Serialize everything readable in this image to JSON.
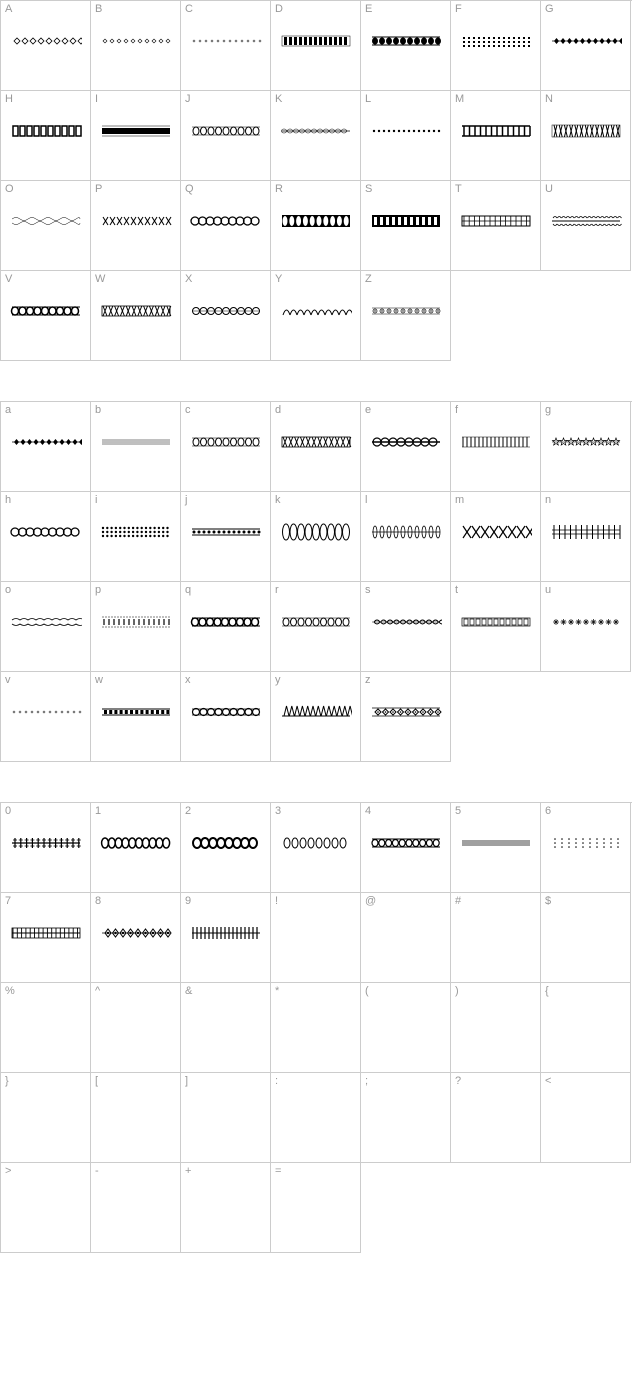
{
  "sections": [
    {
      "rows": [
        [
          "A",
          "B",
          "C",
          "D",
          "E",
          "F",
          "G"
        ],
        [
          "H",
          "I",
          "J",
          "K",
          "L",
          "M",
          "N"
        ],
        [
          "O",
          "P",
          "Q",
          "R",
          "S",
          "T",
          "U"
        ],
        [
          "V",
          "W",
          "X",
          "Y",
          "Z"
        ]
      ],
      "glyphs": {
        "A": "diamond-hollow",
        "B": "diamond-small",
        "C": "dots-small",
        "D": "square-dense",
        "E": "oval-thick",
        "F": "dots-stacked",
        "G": "diamond-chain",
        "H": "hash-thick",
        "I": "bar-thick",
        "J": "oval-outline",
        "K": "twist",
        "L": "dots-line",
        "M": "ladder",
        "N": "cross-dense",
        "O": "wave-thin",
        "P": "xxx",
        "Q": "oval-chain",
        "R": "oval-dense",
        "S": "rect-dense",
        "T": "rect-mesh",
        "U": "wave-tight",
        "V": "chain-heavy",
        "W": "mesh-heavy",
        "X": "circles",
        "Y": "waves",
        "Z": "dots-circle"
      }
    },
    {
      "rows": [
        [
          "a",
          "b",
          "c",
          "d",
          "e",
          "f",
          "g"
        ],
        [
          "h",
          "i",
          "j",
          "k",
          "l",
          "m",
          "n"
        ],
        [
          "o",
          "p",
          "q",
          "r",
          "s",
          "t",
          "u"
        ],
        [
          "v",
          "w",
          "x",
          "y",
          "z"
        ]
      ],
      "glyphs": {
        "a": "diamond-chain",
        "b": "lines-thin",
        "c": "oval-outline",
        "d": "mesh-heavy",
        "e": "circle-line",
        "f": "vert-lines",
        "g": "star-chain",
        "h": "oval-chain",
        "i": "dots-dense",
        "j": "bar-line",
        "k": "oval-tall",
        "l": "oval-thin",
        "m": "xxx-wide",
        "n": "fence",
        "o": "wave-double",
        "p": "dash-box",
        "q": "chain-heavy",
        "r": "oval-outline",
        "s": "rope",
        "t": "brick",
        "u": "star-open",
        "v": "dots-small",
        "w": "dash-thick",
        "x": "circle-chain",
        "y": "spikes",
        "z": "diamond-box"
      }
    },
    {
      "rows": [
        [
          "0",
          "1",
          "2",
          "3",
          "4",
          "5",
          "6"
        ],
        [
          "7",
          "8",
          "9",
          "!",
          "@",
          "#",
          "$"
        ],
        [
          "%",
          "^",
          "&",
          "*",
          "(",
          ")",
          "{"
        ],
        [
          "}",
          "[",
          "]",
          ":",
          ";",
          "?",
          "<"
        ],
        [
          ">",
          "-",
          "+",
          "="
        ]
      ],
      "glyphs": {
        "0": "cross-line",
        "1": "oval-dense-outline",
        "2": "oval-bold",
        "3": "oval-open",
        "4": "chain-double",
        "5": "lines-double",
        "6": "dots-sparse",
        "7": "mesh-tight",
        "8": "geo-chain",
        "9": "vert-dense",
        "!": "",
        "@": "",
        "#": "",
        "$": "",
        "%": "",
        "^": "",
        "&": "",
        "*": "",
        "(": "",
        ")": "",
        "{": "",
        "}": "",
        "[": "",
        "]": "",
        ":": "",
        ";": "",
        "?": "",
        "<": "",
        ">": "",
        "-": "",
        "+": "",
        "=": ""
      }
    }
  ],
  "colors": {
    "border": "#cccccc",
    "label": "#999999",
    "glyph": "#000000",
    "bg": "#ffffff"
  },
  "cell_size": 90,
  "label_fontsize": 11
}
